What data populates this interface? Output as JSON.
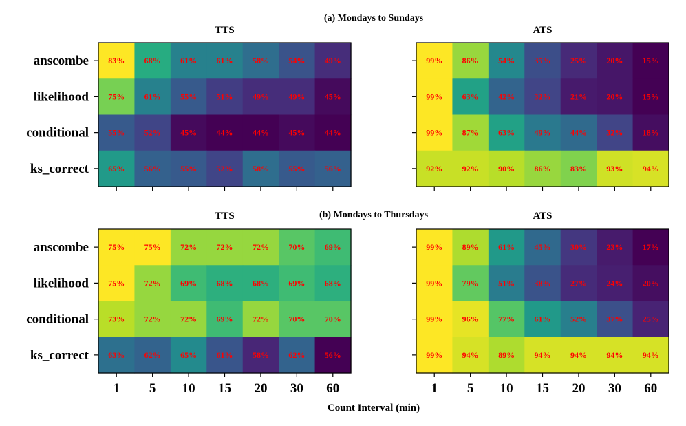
{
  "chart_data": [
    {
      "type": "heatmap",
      "section": "(a) Mondays to Sundays",
      "title": "TTS",
      "rows": [
        "anscombe",
        "likelihood",
        "conditional",
        "ks_correct"
      ],
      "columns": [
        "1",
        "5",
        "10",
        "15",
        "20",
        "30",
        "60"
      ],
      "values": [
        [
          83,
          68,
          61,
          61,
          58,
          54,
          49
        ],
        [
          75,
          61,
          55,
          51,
          49,
          49,
          45
        ],
        [
          55,
          52,
          45,
          44,
          44,
          45,
          44
        ],
        [
          65,
          56,
          55,
          52,
          58,
          55,
          56
        ]
      ],
      "value_suffix": "%",
      "xlabel": "",
      "ylabel": ""
    },
    {
      "type": "heatmap",
      "section": "(a) Mondays to Sundays",
      "title": "ATS",
      "rows": [
        "anscombe",
        "likelihood",
        "conditional",
        "ks_correct"
      ],
      "columns": [
        "1",
        "5",
        "10",
        "15",
        "20",
        "30",
        "60"
      ],
      "values": [
        [
          99,
          86,
          54,
          35,
          25,
          20,
          15
        ],
        [
          99,
          63,
          42,
          32,
          21,
          20,
          15
        ],
        [
          99,
          87,
          63,
          49,
          44,
          32,
          18
        ],
        [
          92,
          92,
          90,
          86,
          83,
          93,
          94
        ]
      ],
      "value_suffix": "%",
      "xlabel": "",
      "ylabel": ""
    },
    {
      "type": "heatmap",
      "section": "(b) Mondays to Thursdays",
      "title": "TTS",
      "rows": [
        "anscombe",
        "likelihood",
        "conditional",
        "ks_correct"
      ],
      "columns": [
        "1",
        "5",
        "10",
        "15",
        "20",
        "30",
        "60"
      ],
      "values": [
        [
          75,
          75,
          72,
          72,
          72,
          70,
          69
        ],
        [
          75,
          72,
          69,
          68,
          68,
          69,
          68
        ],
        [
          73,
          72,
          72,
          69,
          72,
          70,
          70
        ],
        [
          63,
          62,
          65,
          61,
          58,
          62,
          56
        ]
      ],
      "value_suffix": "%",
      "xlabel": "",
      "ylabel": ""
    },
    {
      "type": "heatmap",
      "section": "(b) Mondays to Thursdays",
      "title": "ATS",
      "rows": [
        "anscombe",
        "likelihood",
        "conditional",
        "ks_correct"
      ],
      "columns": [
        "1",
        "5",
        "10",
        "15",
        "20",
        "30",
        "60"
      ],
      "values": [
        [
          99,
          89,
          61,
          45,
          30,
          23,
          17
        ],
        [
          99,
          79,
          51,
          38,
          27,
          24,
          20
        ],
        [
          99,
          96,
          77,
          61,
          52,
          37,
          25
        ],
        [
          99,
          94,
          89,
          94,
          94,
          94,
          94
        ]
      ],
      "value_suffix": "%",
      "xlabel": "",
      "ylabel": ""
    }
  ],
  "figure": {
    "xlabel": "Count Interval (min)",
    "colormap": "viridis"
  }
}
